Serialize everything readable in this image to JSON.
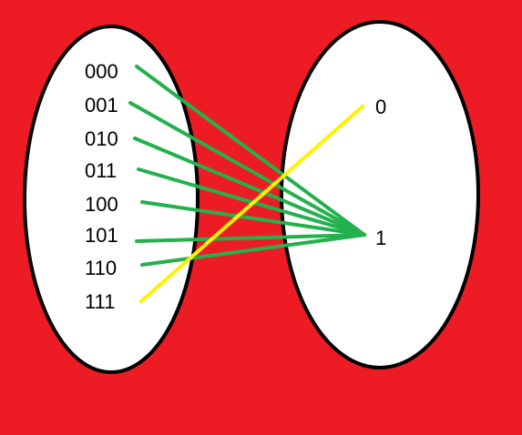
{
  "diagram": {
    "domain": {
      "labels": [
        "000",
        "001",
        "010",
        "011",
        "100",
        "101",
        "110",
        "111"
      ]
    },
    "codomain": {
      "labels": [
        "0",
        "1"
      ]
    },
    "mapping": [
      {
        "from": "000",
        "to": "1"
      },
      {
        "from": "001",
        "to": "1"
      },
      {
        "from": "010",
        "to": "1"
      },
      {
        "from": "011",
        "to": "1"
      },
      {
        "from": "100",
        "to": "1"
      },
      {
        "from": "101",
        "to": "1"
      },
      {
        "from": "110",
        "to": "1"
      },
      {
        "from": "111",
        "to": "0"
      }
    ],
    "colors": {
      "background": "#ed1c24",
      "set_fill": "#ffffff",
      "set_stroke": "#000000",
      "arrow_to_1": "#22b14c",
      "arrow_to_0": "#fff200"
    }
  }
}
